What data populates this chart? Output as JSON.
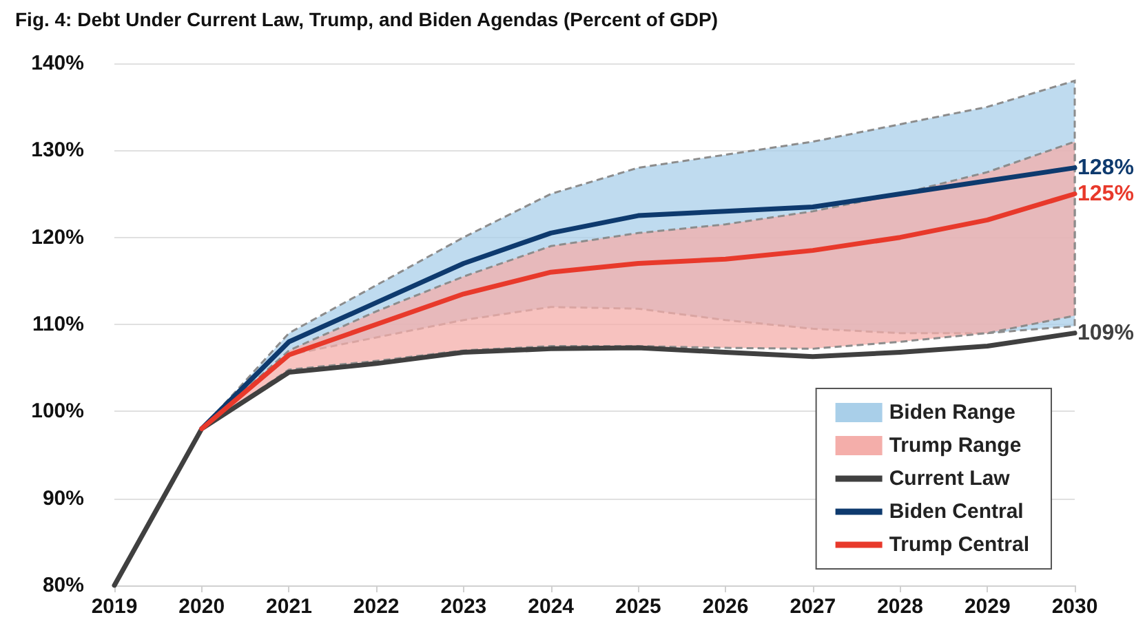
{
  "chart_data": {
    "type": "line",
    "title": "Fig. 4: Debt Under Current Law, Trump, and Biden Agendas (Percent of GDP)",
    "categories": [
      "2019",
      "2020",
      "2021",
      "2022",
      "2023",
      "2024",
      "2025",
      "2026",
      "2027",
      "2028",
      "2029",
      "2030"
    ],
    "series": [
      {
        "name": "Biden Range",
        "type": "area",
        "color": "#a9cfe9",
        "values": [
          null,
          null,
          null,
          null,
          null,
          null,
          null,
          null,
          null,
          null,
          null,
          null
        ],
        "lower": [
          null,
          98,
          106.5,
          108.5,
          110.5,
          112,
          111.8,
          110.5,
          109.5,
          109,
          109,
          109.8
        ],
        "upper": [
          null,
          98,
          109,
          114.5,
          120,
          125,
          128,
          129.5,
          131,
          133,
          135,
          138
        ]
      },
      {
        "name": "Trump Range",
        "type": "area",
        "color": "#f4aeaa",
        "values": [
          null,
          null,
          null,
          null,
          null,
          null,
          null,
          null,
          null,
          null,
          null,
          null
        ],
        "lower": [
          null,
          98,
          104.8,
          105.8,
          107,
          107.5,
          107.5,
          107.3,
          107.2,
          108,
          109,
          111
        ],
        "upper": [
          null,
          98,
          107,
          111.5,
          115.5,
          119,
          120.5,
          121.5,
          123,
          125,
          127.5,
          131
        ]
      },
      {
        "name": "Current Law",
        "color": "#404040",
        "values": [
          80,
          98,
          104.5,
          105.5,
          106.8,
          107.2,
          107.3,
          106.8,
          106.3,
          106.8,
          107.5,
          109
        ],
        "value_labels": [
          null,
          null,
          null,
          null,
          null,
          null,
          null,
          null,
          null,
          null,
          null,
          "109%"
        ]
      },
      {
        "name": "Biden Central",
        "color": "#0e3a6e",
        "values": [
          null,
          98,
          108,
          112.5,
          117,
          120.5,
          122.5,
          123,
          123.5,
          125,
          126.5,
          128
        ],
        "value_labels": [
          null,
          null,
          null,
          null,
          null,
          null,
          null,
          null,
          null,
          null,
          null,
          "128%"
        ]
      },
      {
        "name": "Trump Central",
        "color": "#e8392b",
        "values": [
          null,
          98,
          106.5,
          110,
          113.5,
          116,
          117,
          117.5,
          118.5,
          120,
          122,
          125
        ],
        "value_labels": [
          null,
          null,
          null,
          null,
          null,
          null,
          null,
          null,
          null,
          null,
          null,
          "125%"
        ]
      }
    ],
    "ylim": [
      80,
      140
    ],
    "yticks": [
      {
        "value": 80,
        "label": "80%"
      },
      {
        "value": 90,
        "label": "90%"
      },
      {
        "value": 100,
        "label": "100%"
      },
      {
        "value": 110,
        "label": "110%"
      },
      {
        "value": 120,
        "label": "120%"
      },
      {
        "value": 130,
        "label": "130%"
      },
      {
        "value": 140,
        "label": "140%"
      }
    ],
    "grid": "y",
    "legend": "bottom right",
    "marker": "none",
    "line_style": "solid"
  }
}
